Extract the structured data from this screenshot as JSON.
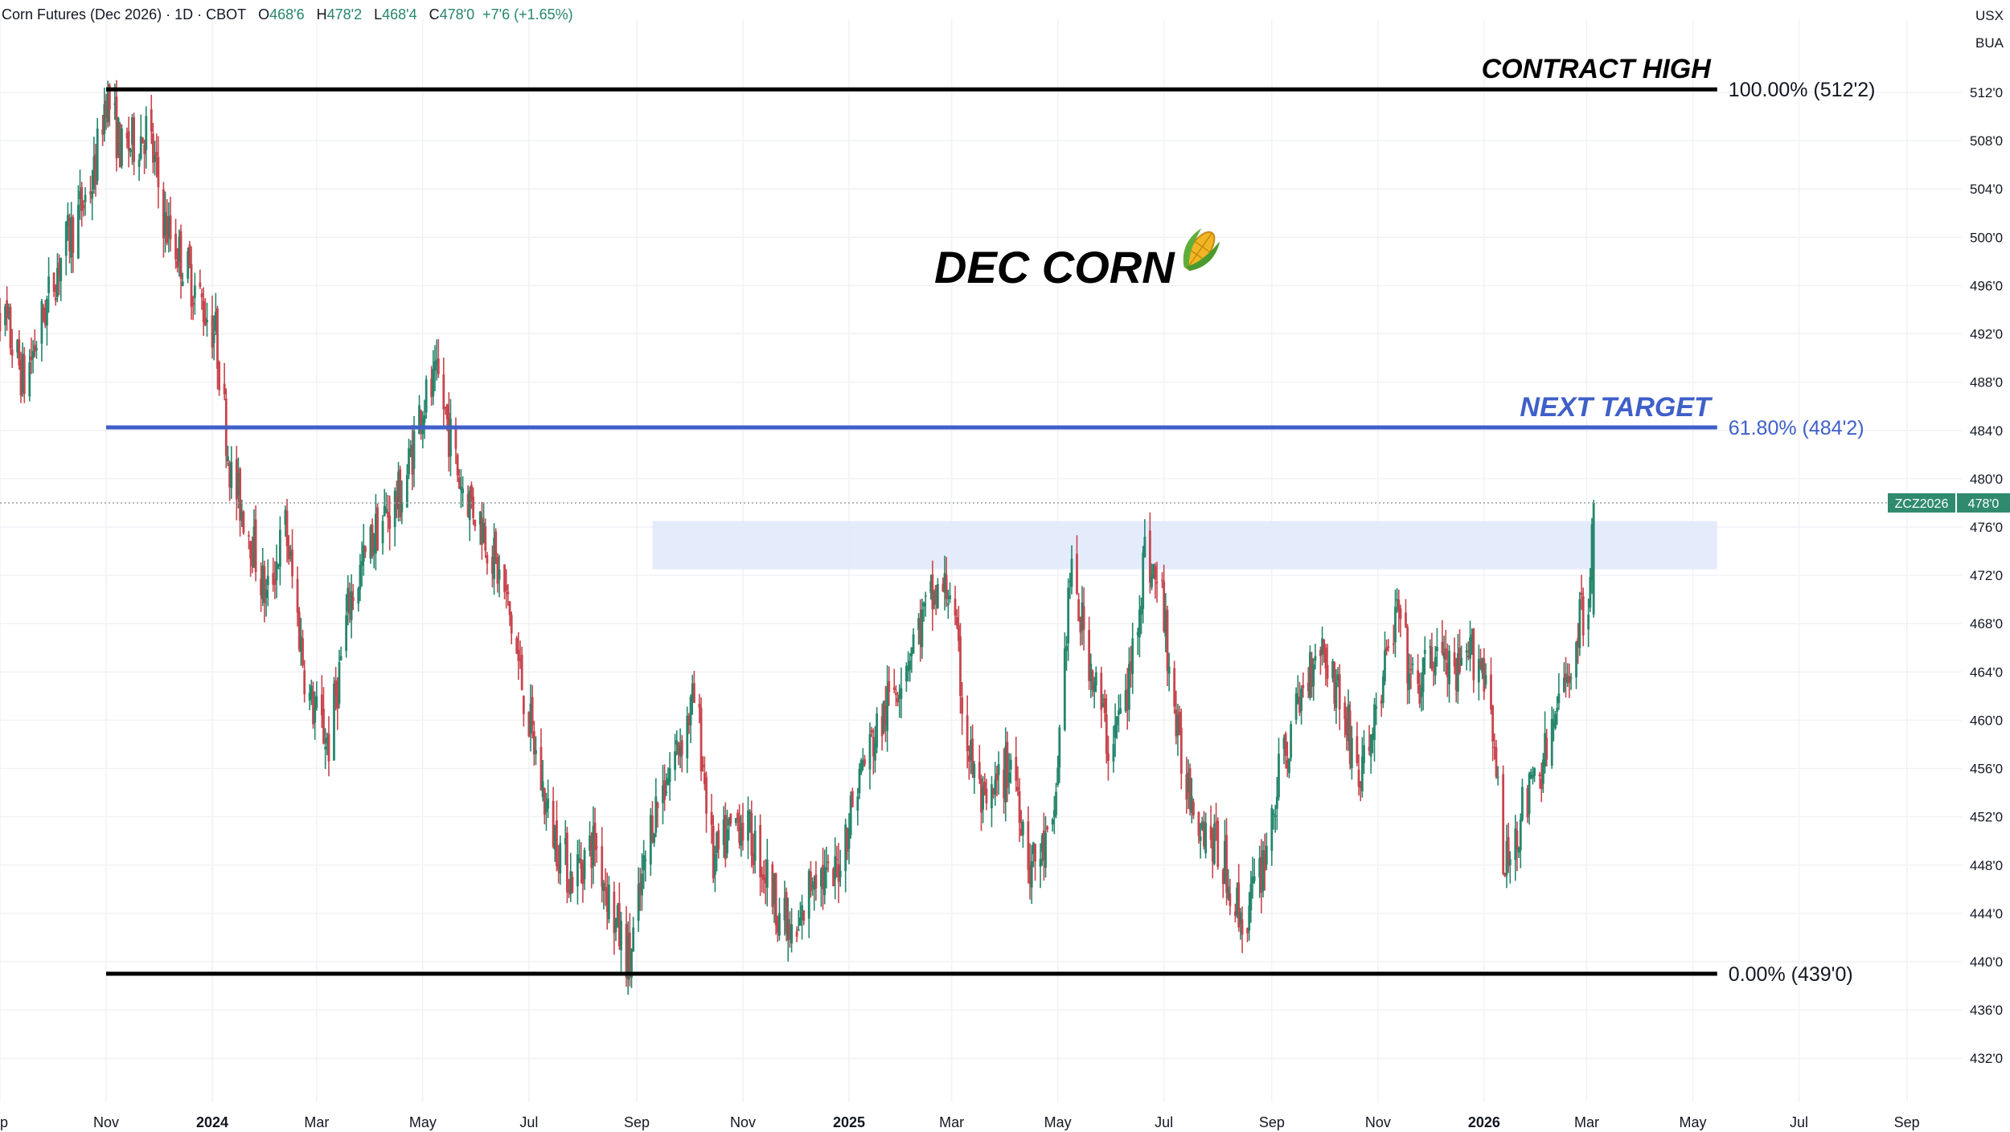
{
  "header": {
    "symbol_text": "Corn Futures (Dec 2026) · 1D · CBOT",
    "o_label": "O",
    "o_value": "468'6",
    "h_label": "H",
    "h_value": "478'2",
    "l_label": "L",
    "l_value": "468'4",
    "c_label": "C",
    "c_value": "478'0",
    "change": "+7'6 (+1.65%)"
  },
  "currency": "USX",
  "unit": "BUA",
  "colors": {
    "up": "#26866c",
    "down": "#c8454d",
    "fib_line": "#3f5fc9",
    "zone_fill": "#dfe9fb",
    "axis_text": "#131722",
    "price_tag": "#2f8a6e"
  },
  "chart_data": {
    "type": "candlestick",
    "title": "DEC CORN",
    "title_icon": "corn-icon",
    "symbol": "ZCZ2026",
    "last_price_label": "478'0",
    "last_price": 478,
    "ylim": [
      429,
      522
    ],
    "y_ticks": [
      {
        "value": 512,
        "label": "512'0"
      },
      {
        "value": 508,
        "label": "508'0"
      },
      {
        "value": 504,
        "label": "504'0"
      },
      {
        "value": 500,
        "label": "500'0"
      },
      {
        "value": 496,
        "label": "496'0"
      },
      {
        "value": 492,
        "label": "492'0"
      },
      {
        "value": 488,
        "label": "488'0"
      },
      {
        "value": 484,
        "label": "484'0"
      },
      {
        "value": 480,
        "label": "480'0"
      },
      {
        "value": 476,
        "label": "476'0"
      },
      {
        "value": 472,
        "label": "472'0"
      },
      {
        "value": 468,
        "label": "468'0"
      },
      {
        "value": 464,
        "label": "464'0"
      },
      {
        "value": 460,
        "label": "460'0"
      },
      {
        "value": 456,
        "label": "456'0"
      },
      {
        "value": 452,
        "label": "452'0"
      },
      {
        "value": 448,
        "label": "448'0"
      },
      {
        "value": 444,
        "label": "444'0"
      },
      {
        "value": 440,
        "label": "440'0"
      },
      {
        "value": 436,
        "label": "436'0"
      },
      {
        "value": 432,
        "label": "432'0"
      }
    ],
    "x_ticks": [
      {
        "date": "2023-09",
        "label": "ep",
        "bold": false
      },
      {
        "date": "2023-11",
        "label": "Nov",
        "bold": false
      },
      {
        "date": "2024-01",
        "label": "2024",
        "bold": true
      },
      {
        "date": "2024-03",
        "label": "Mar",
        "bold": false
      },
      {
        "date": "2024-05",
        "label": "May",
        "bold": false
      },
      {
        "date": "2024-07",
        "label": "Jul",
        "bold": false
      },
      {
        "date": "2024-09",
        "label": "Sep",
        "bold": false
      },
      {
        "date": "2024-11",
        "label": "Nov",
        "bold": false
      },
      {
        "date": "2025-01",
        "label": "2025",
        "bold": true
      },
      {
        "date": "2025-03",
        "label": "Mar",
        "bold": false
      },
      {
        "date": "2025-05",
        "label": "May",
        "bold": false
      },
      {
        "date": "2025-07",
        "label": "Jul",
        "bold": false
      },
      {
        "date": "2025-09",
        "label": "Sep",
        "bold": false
      },
      {
        "date": "2025-11",
        "label": "Nov",
        "bold": false
      },
      {
        "date": "2026-01",
        "label": "2026",
        "bold": true
      },
      {
        "date": "2026-03",
        "label": "Mar",
        "bold": false
      },
      {
        "date": "2026-05",
        "label": "May",
        "bold": false
      },
      {
        "date": "2026-07",
        "label": "Jul",
        "bold": false
      },
      {
        "date": "2026-09",
        "label": "Sep",
        "bold": false
      }
    ],
    "fib_levels": [
      {
        "ratio_label": "100.00% (512'2)",
        "price": 512.25,
        "start": "2023-11",
        "end": "2026-05-15",
        "color": "#000000",
        "annotation": "CONTRACT HIGH"
      },
      {
        "ratio_label": "61.80% (484'2)",
        "price": 484.25,
        "start": "2023-11",
        "end": "2026-05-15",
        "color": "#3f5fc9",
        "annotation": "NEXT TARGET"
      },
      {
        "ratio_label": "0.00% (439'0)",
        "price": 439.0,
        "start": "2023-11",
        "end": "2026-05-15",
        "color": "#000000",
        "annotation": ""
      }
    ],
    "resistance_zone": {
      "from": "2024-09-10",
      "to": "2026-05-15",
      "low": 472.5,
      "high": 476.5
    },
    "price_path": [
      [
        "2023-08-28",
        496
      ],
      [
        "2023-09-15",
        488
      ],
      [
        "2023-10-05",
        498
      ],
      [
        "2023-10-25",
        505
      ],
      [
        "2023-11-01",
        512
      ],
      [
        "2023-11-10",
        507
      ],
      [
        "2023-11-25",
        509
      ],
      [
        "2023-12-05",
        501
      ],
      [
        "2023-12-15",
        498
      ],
      [
        "2024-01-03",
        492
      ],
      [
        "2024-01-12",
        480
      ],
      [
        "2024-01-22",
        476
      ],
      [
        "2024-02-01",
        470
      ],
      [
        "2024-02-12",
        476
      ],
      [
        "2024-02-25",
        462
      ],
      [
        "2024-03-08",
        458
      ],
      [
        "2024-03-20",
        470
      ],
      [
        "2024-04-05",
        476
      ],
      [
        "2024-04-20",
        479
      ],
      [
        "2024-04-30",
        486
      ],
      [
        "2024-05-10",
        488
      ],
      [
        "2024-05-22",
        480
      ],
      [
        "2024-06-05",
        476
      ],
      [
        "2024-06-18",
        470
      ],
      [
        "2024-07-01",
        460
      ],
      [
        "2024-07-12",
        452
      ],
      [
        "2024-07-25",
        447
      ],
      [
        "2024-08-08",
        450
      ],
      [
        "2024-08-20",
        443
      ],
      [
        "2024-08-28",
        440
      ],
      [
        "2024-09-10",
        452
      ],
      [
        "2024-09-25",
        458
      ],
      [
        "2024-10-05",
        462
      ],
      [
        "2024-10-15",
        448
      ],
      [
        "2024-10-30",
        452
      ],
      [
        "2024-11-10",
        449
      ],
      [
        "2024-11-20",
        445
      ],
      [
        "2024-12-01",
        441
      ],
      [
        "2024-12-12",
        448
      ],
      [
        "2024-12-22",
        446
      ],
      [
        "2025-01-08",
        456
      ],
      [
        "2025-01-20",
        460
      ],
      [
        "2025-02-05",
        466
      ],
      [
        "2025-02-18",
        470
      ],
      [
        "2025-02-28",
        471
      ],
      [
        "2025-03-10",
        458
      ],
      [
        "2025-03-20",
        452
      ],
      [
        "2025-04-05",
        457
      ],
      [
        "2025-04-15",
        448
      ],
      [
        "2025-04-28",
        450
      ],
      [
        "2025-05-08",
        472
      ],
      [
        "2025-05-18",
        466
      ],
      [
        "2025-05-30",
        458
      ],
      [
        "2025-06-10",
        462
      ],
      [
        "2025-06-20",
        474
      ],
      [
        "2025-06-30",
        470
      ],
      [
        "2025-07-10",
        457
      ],
      [
        "2025-07-22",
        452
      ],
      [
        "2025-08-05",
        448
      ],
      [
        "2025-08-15",
        443
      ],
      [
        "2025-08-25",
        447
      ],
      [
        "2025-09-05",
        455
      ],
      [
        "2025-09-18",
        462
      ],
      [
        "2025-09-28",
        467
      ],
      [
        "2025-10-10",
        462
      ],
      [
        "2025-10-22",
        455
      ],
      [
        "2025-11-02",
        462
      ],
      [
        "2025-11-12",
        469
      ],
      [
        "2025-11-22",
        462
      ],
      [
        "2025-12-05",
        466
      ],
      [
        "2025-12-15",
        463
      ],
      [
        "2025-12-28",
        466
      ],
      [
        "2026-01-05",
        462
      ],
      [
        "2026-01-12",
        447
      ],
      [
        "2026-01-22",
        452
      ],
      [
        "2026-02-05",
        457
      ],
      [
        "2026-02-15",
        462
      ],
      [
        "2026-02-25",
        468
      ],
      [
        "2026-03-02",
        471
      ],
      [
        "2026-03-05",
        478
      ]
    ]
  }
}
